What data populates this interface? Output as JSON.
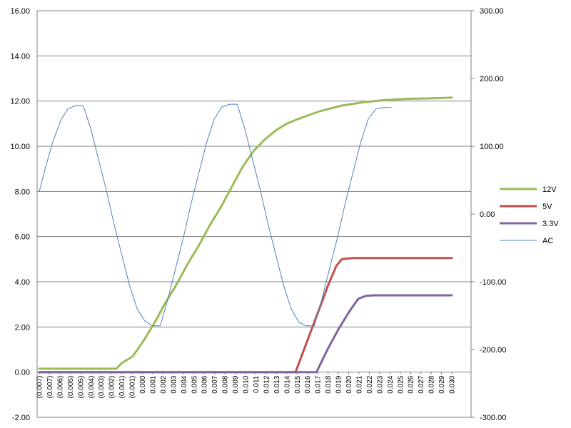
{
  "chart_data": {
    "type": "line",
    "title": "",
    "xlabel": "",
    "ylabel": "",
    "y_left": {
      "min": -2,
      "max": 16,
      "step": 2,
      "ticks": [
        "-2.00",
        "0.00",
        "2.00",
        "4.00",
        "6.00",
        "8.00",
        "10.00",
        "12.00",
        "14.00",
        "16.00"
      ]
    },
    "y_right": {
      "min": -300,
      "max": 300,
      "step": 100,
      "ticks": [
        "-300.00",
        "-200.00",
        "-100.00",
        "0.00",
        "100.00",
        "200.00",
        "300.00"
      ]
    },
    "x_ticks": [
      "(0.007)",
      "(0.007)",
      "(0.006)",
      "(0.005)",
      "(0.005)",
      "(0.004)",
      "(0.003)",
      "(0.002)",
      "(0.001)",
      "(0.001)",
      "0.000",
      "0.001",
      "0.002",
      "0.003",
      "0.004",
      "0.005",
      "0.006",
      "0.007",
      "0.008",
      "0.009",
      "0.010",
      "0.011",
      "0.012",
      "0.013",
      "0.014",
      "0.015",
      "0.016",
      "0.017",
      "0.018",
      "0.019",
      "0.020",
      "0.021",
      "0.022",
      "0.023",
      "0.024",
      "0.025",
      "0.026",
      "0.027",
      "0.028",
      "0.029",
      "0.030"
    ],
    "grid": "horizontal",
    "legend_position": "right",
    "series": [
      {
        "name": "12V",
        "color": "#9BBB59",
        "axis": "left",
        "points": [
          [
            -0.0075,
            0.15
          ],
          [
            -0.0005,
            0.15
          ],
          [
            0.0,
            0.4
          ],
          [
            0.001,
            0.7
          ],
          [
            0.002,
            1.4
          ],
          [
            0.003,
            2.2
          ],
          [
            0.004,
            3.1
          ],
          [
            0.005,
            3.9
          ],
          [
            0.006,
            4.8
          ],
          [
            0.007,
            5.6
          ],
          [
            0.008,
            6.5
          ],
          [
            0.009,
            7.3
          ],
          [
            0.01,
            8.2
          ],
          [
            0.011,
            9.1
          ],
          [
            0.012,
            9.8
          ],
          [
            0.013,
            10.3
          ],
          [
            0.014,
            10.7
          ],
          [
            0.015,
            11.0
          ],
          [
            0.016,
            11.2
          ],
          [
            0.018,
            11.55
          ],
          [
            0.02,
            11.8
          ],
          [
            0.022,
            11.95
          ],
          [
            0.024,
            12.05
          ],
          [
            0.026,
            12.1
          ],
          [
            0.028,
            12.12
          ],
          [
            0.03,
            12.15
          ]
        ]
      },
      {
        "name": "5V",
        "color": "#C0504D",
        "axis": "left",
        "points": [
          [
            -0.0075,
            0.0
          ],
          [
            0.0158,
            0.0
          ],
          [
            0.0168,
            1.3
          ],
          [
            0.0178,
            2.6
          ],
          [
            0.0188,
            3.9
          ],
          [
            0.0195,
            4.7
          ],
          [
            0.02,
            5.0
          ],
          [
            0.021,
            5.05
          ],
          [
            0.03,
            5.05
          ]
        ]
      },
      {
        "name": "3.3V",
        "color": "#8064A2",
        "axis": "left",
        "points": [
          [
            -0.0075,
            0.0
          ],
          [
            0.0177,
            0.0
          ],
          [
            0.0187,
            1.0
          ],
          [
            0.0197,
            1.9
          ],
          [
            0.0207,
            2.7
          ],
          [
            0.0215,
            3.25
          ],
          [
            0.0222,
            3.38
          ],
          [
            0.023,
            3.4
          ],
          [
            0.03,
            3.4
          ]
        ]
      },
      {
        "name": "AC",
        "color": "#4F81BD",
        "axis": "right",
        "points": [
          [
            -0.0075,
            33
          ],
          [
            -0.007,
            65
          ],
          [
            -0.0063,
            105
          ],
          [
            -0.0055,
            140
          ],
          [
            -0.0049,
            155
          ],
          [
            -0.0042,
            160
          ],
          [
            -0.0035,
            160
          ],
          [
            -0.0028,
            125
          ],
          [
            -0.0021,
            80
          ],
          [
            -0.0014,
            35
          ],
          [
            -0.0007,
            -15
          ],
          [
            0.0,
            -60
          ],
          [
            0.0007,
            -105
          ],
          [
            0.0014,
            -140
          ],
          [
            0.0021,
            -158
          ],
          [
            0.0028,
            -165
          ],
          [
            0.0035,
            -165
          ],
          [
            0.0042,
            -125
          ],
          [
            0.0049,
            -80
          ],
          [
            0.0056,
            -35
          ],
          [
            0.0063,
            15
          ],
          [
            0.007,
            60
          ],
          [
            0.0077,
            105
          ],
          [
            0.0084,
            140
          ],
          [
            0.0091,
            158
          ],
          [
            0.0098,
            162
          ],
          [
            0.0105,
            162
          ],
          [
            0.0112,
            125
          ],
          [
            0.0119,
            80
          ],
          [
            0.0126,
            35
          ],
          [
            0.0133,
            -15
          ],
          [
            0.014,
            -60
          ],
          [
            0.0147,
            -105
          ],
          [
            0.0154,
            -140
          ],
          [
            0.0161,
            -160
          ],
          [
            0.0168,
            -165
          ],
          [
            0.0175,
            -165
          ],
          [
            0.0182,
            -125
          ],
          [
            0.0189,
            -80
          ],
          [
            0.0196,
            -35
          ],
          [
            0.0203,
            15
          ],
          [
            0.021,
            60
          ],
          [
            0.0217,
            105
          ],
          [
            0.0224,
            140
          ],
          [
            0.0231,
            155
          ],
          [
            0.0238,
            157
          ],
          [
            0.0245,
            157
          ]
        ]
      }
    ]
  }
}
